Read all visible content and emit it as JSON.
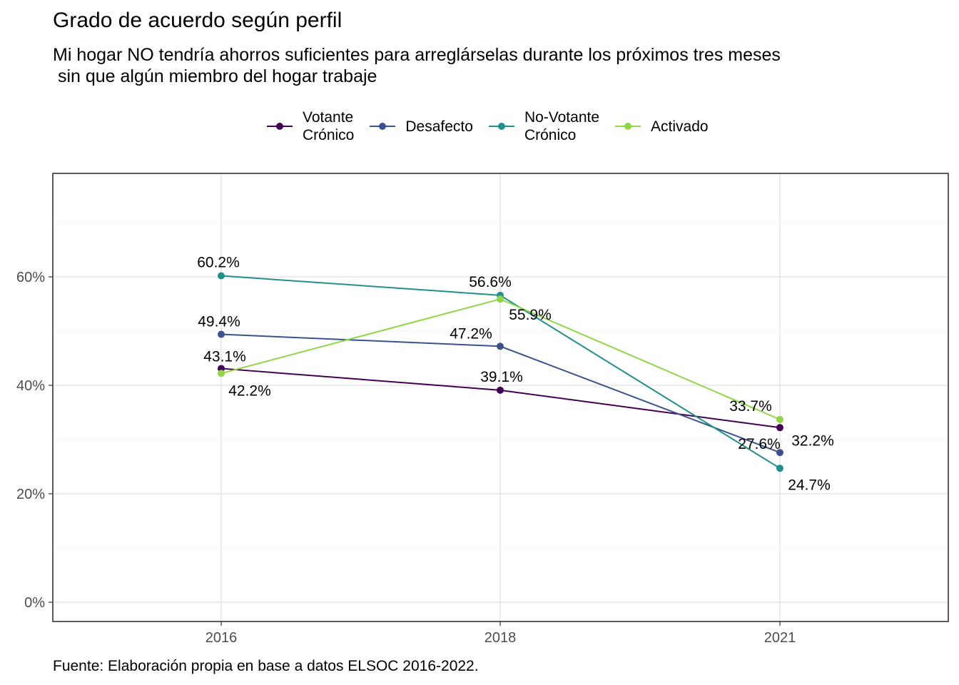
{
  "title": "Grado de acuerdo según perfil",
  "subtitle": "Mi hogar NO tendría ahorros suficientes para arreglárselas durante los próximos tres meses\n sin que algún miembro del hogar trabaje",
  "caption": "Fuente: Elaboración propia en base a datos ELSOC 2016-2022.",
  "chart_data": {
    "type": "line",
    "title": "Grado de acuerdo según perfil",
    "subtitle": "Mi hogar NO tendría ahorros suficientes para arreglárselas durante los próximos tres meses sin que algún miembro del hogar trabaje",
    "categories": [
      "2016",
      "2018",
      "2021"
    ],
    "xlabel": "",
    "ylabel": "",
    "ylim": [
      0,
      0.75
    ],
    "yticks": [
      0,
      0.2,
      0.4,
      0.6
    ],
    "ytick_labels": [
      "0%",
      "20%",
      "40%",
      "60%"
    ],
    "grid": true,
    "legend_position": "top",
    "series": [
      {
        "name": "Votante\nCrónico",
        "color": "#440154",
        "values": [
          0.431,
          0.391,
          0.322
        ],
        "labels": [
          "43.1%",
          "39.1%",
          "32.2%"
        ]
      },
      {
        "name": "Desafecto",
        "color": "#3B528B",
        "values": [
          0.494,
          0.472,
          0.276
        ],
        "labels": [
          "49.4%",
          "47.2%",
          "27.6%"
        ]
      },
      {
        "name": "No-Votante\nCrónico",
        "color": "#21908C",
        "values": [
          0.602,
          0.566,
          0.247
        ],
        "labels": [
          "60.2%",
          "56.6%",
          "24.7%"
        ]
      },
      {
        "name": "Activado",
        "color": "#8FD744",
        "values": [
          0.422,
          0.559,
          0.337
        ],
        "labels": [
          "42.2%",
          "55.9%",
          "33.7%"
        ]
      }
    ]
  }
}
